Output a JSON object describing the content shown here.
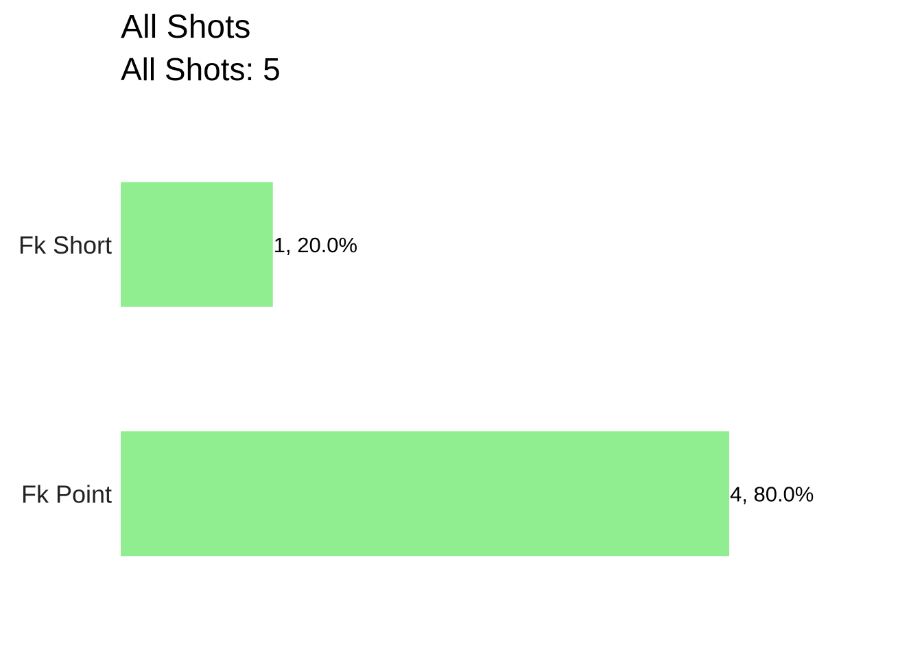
{
  "chart_data": {
    "type": "barh",
    "title": "All Shots",
    "subtitle": "All Shots: 5",
    "categories": [
      "Fk Short",
      "Fk Point"
    ],
    "values": [
      1,
      4
    ],
    "value_labels": [
      "1, 20.0%",
      "4, 80.0%"
    ],
    "color": "#90ee90"
  }
}
